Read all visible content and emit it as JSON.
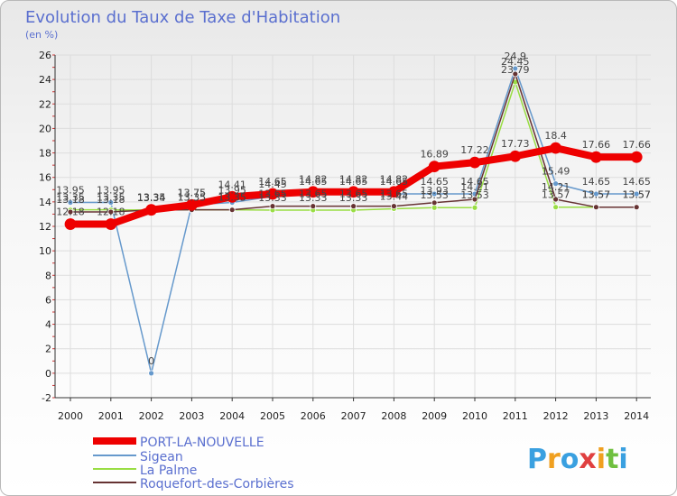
{
  "chart_data": {
    "type": "line",
    "title": "Evolution du Taux de Taxe d'Habitation",
    "subtitle": "(en %)",
    "xlabel": "",
    "ylabel": "",
    "x": [
      "2000",
      "2001",
      "2002",
      "2003",
      "2004",
      "2005",
      "2006",
      "2007",
      "2008",
      "2009",
      "2010",
      "2011",
      "2012",
      "2013",
      "2014"
    ],
    "ylim": [
      -2,
      26
    ],
    "yticks": [
      -2,
      0,
      2,
      4,
      6,
      8,
      10,
      12,
      14,
      16,
      18,
      20,
      22,
      24,
      26
    ],
    "grid": true,
    "legend_position": "bottom-left",
    "series": [
      {
        "name": "PORT-LA-NOUVELLE",
        "color": "#ee0000",
        "values": [
          12.18,
          12.18,
          13.35,
          13.75,
          14.41,
          14.65,
          14.82,
          14.82,
          14.82,
          16.89,
          17.22,
          17.73,
          18.4,
          17.66,
          17.66
        ],
        "labels": [
          "12.18",
          "12.18",
          "13.35",
          "13.75",
          "14.41",
          "14.65",
          "14.82",
          "14.82",
          "14.82",
          "16.89",
          "17.22",
          "17.73",
          "18.4",
          "17.66",
          "17.66"
        ]
      },
      {
        "name": "Sigean",
        "color": "#6699cc",
        "values": [
          13.95,
          13.95,
          0,
          13.75,
          13.95,
          14.45,
          14.65,
          14.65,
          14.65,
          14.65,
          14.65,
          24.9,
          15.49,
          14.65,
          14.65
        ],
        "labels": [
          "13.95",
          "13.95",
          "0",
          "13.75",
          "13.95",
          "14.45",
          "14.65",
          "14.65",
          "14.65",
          "14.65",
          "14.65",
          "24.9",
          "15.49",
          "14.65",
          "14.65"
        ]
      },
      {
        "name": "La Palme",
        "color": "#99dd44",
        "values": [
          13.35,
          13.35,
          13.34,
          13.35,
          13.35,
          13.33,
          13.33,
          13.33,
          13.44,
          13.53,
          13.53,
          23.79,
          13.57,
          13.57,
          13.57
        ],
        "labels": [
          "13.35",
          "13.35",
          "13.34",
          "13.35",
          "13.35",
          "13.33",
          "13.33",
          "13.33",
          "13.44",
          "13.53",
          "13.53",
          "23.79",
          "13.57",
          "13.57",
          "13.57"
        ]
      },
      {
        "name": "Roquefort-des-Corbières",
        "color": "#663333",
        "values": [
          13.18,
          13.18,
          13.34,
          13.35,
          13.35,
          13.65,
          13.65,
          13.65,
          13.65,
          13.93,
          14.21,
          24.45,
          14.21,
          13.57,
          13.57
        ],
        "labels": [
          "13.18",
          "13.18",
          "13.34",
          "13.35",
          "13.35",
          "13.65",
          "13.65",
          "13.65",
          "13.65",
          "13.93",
          "14.21",
          "24.45",
          "14.21",
          "13.57",
          "13.57"
        ]
      }
    ]
  },
  "logo": {
    "text": "Proxiti",
    "letters": [
      "P",
      "r",
      "o",
      "x",
      "i",
      "t",
      "i"
    ],
    "letter_colors": [
      "#3aa0e0",
      "#f0a020",
      "#3aa0e0",
      "#e04040",
      "#f0a020",
      "#70c040",
      "#3aa0e0"
    ]
  }
}
